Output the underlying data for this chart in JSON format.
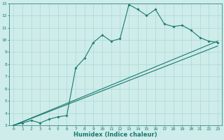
{
  "xlabel": "Humidex (Indice chaleur)",
  "xlim": [
    -0.5,
    23.5
  ],
  "ylim": [
    3,
    13
  ],
  "xticks": [
    0,
    1,
    2,
    3,
    4,
    5,
    6,
    7,
    8,
    9,
    10,
    11,
    12,
    13,
    14,
    15,
    16,
    17,
    18,
    19,
    20,
    21,
    22,
    23
  ],
  "yticks": [
    3,
    4,
    5,
    6,
    7,
    8,
    9,
    10,
    11,
    12,
    13
  ],
  "background_color": "#ceecea",
  "grid_color": "#aed8d4",
  "line_color": "#1a7a6e",
  "line1_x": [
    0,
    1,
    2,
    3,
    4,
    5,
    6,
    7,
    8,
    9,
    10,
    11,
    12,
    13,
    14,
    15,
    16,
    17,
    18,
    19,
    20,
    21,
    22,
    23
  ],
  "line1_y": [
    3.0,
    3.2,
    3.4,
    3.2,
    3.5,
    3.7,
    3.8,
    7.7,
    8.5,
    9.8,
    10.4,
    9.9,
    10.1,
    12.9,
    12.5,
    12.0,
    12.5,
    11.3,
    11.1,
    11.2,
    10.8,
    10.2,
    9.9,
    9.8
  ],
  "line2_x": [
    0,
    23
  ],
  "line2_y": [
    3.0,
    9.9
  ],
  "line3_x": [
    0,
    23
  ],
  "line3_y": [
    3.0,
    9.5
  ],
  "marker_size": 2.0,
  "linewidth": 0.8,
  "tick_fontsize": 4.5,
  "xlabel_fontsize": 6.0,
  "xlabel_fontweight": "bold"
}
